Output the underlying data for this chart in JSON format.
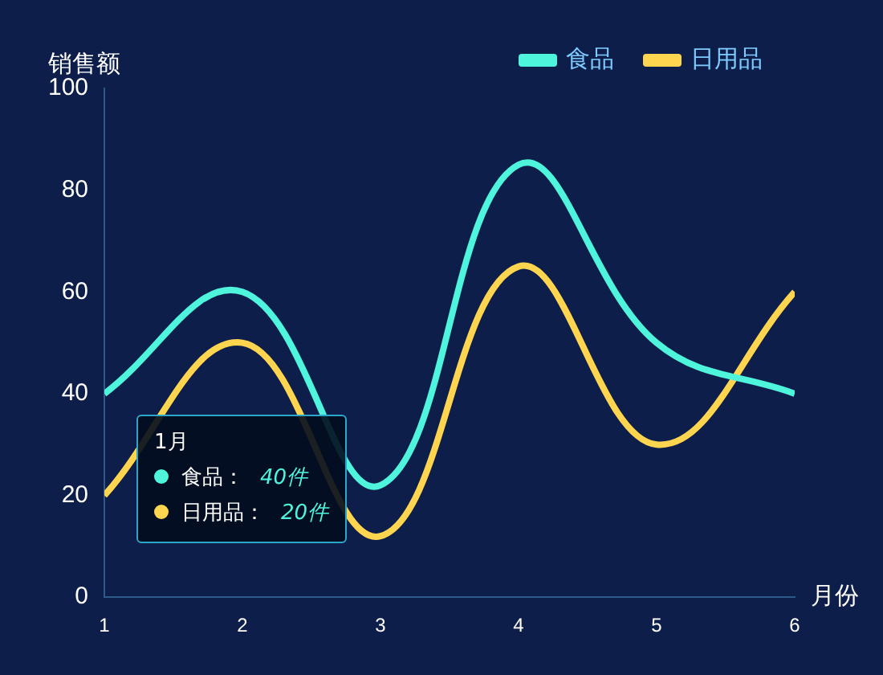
{
  "chart_data": {
    "type": "line",
    "ylabel": "销售额",
    "xlabel": "月份",
    "x": [
      1,
      2,
      3,
      4,
      5,
      6
    ],
    "series": [
      {
        "name": "食品",
        "color": "#4ef5dc",
        "values": [
          40,
          60,
          22,
          85,
          50,
          40
        ]
      },
      {
        "name": "日用品",
        "color": "#ffd54f",
        "values": [
          20,
          50,
          12,
          65,
          30,
          60
        ]
      }
    ],
    "xlim": [
      1,
      6
    ],
    "xticks": [
      1,
      2,
      3,
      4,
      5,
      6
    ],
    "ylim": [
      0,
      100
    ],
    "yticks": [
      0,
      20,
      40,
      60,
      80,
      100
    ],
    "grid": false,
    "legend": "top right",
    "marker": "none",
    "line_style": "solid",
    "annotations": [
      "1月",
      "食品：",
      "40件",
      "日用品：",
      "20件"
    ]
  }
}
